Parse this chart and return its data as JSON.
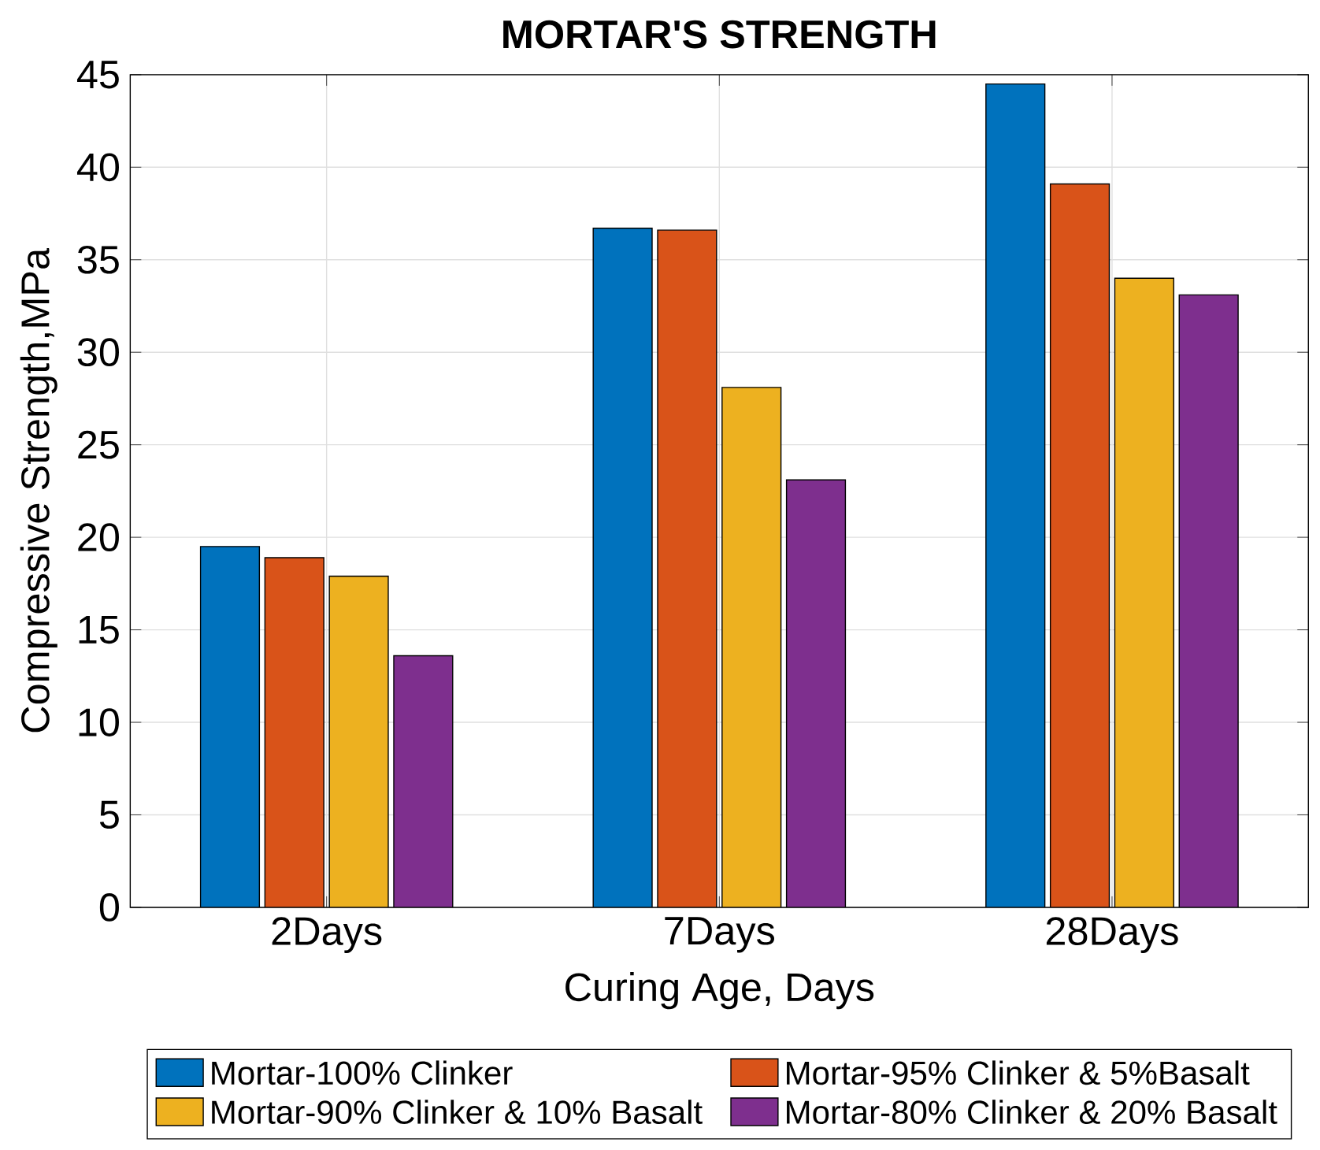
{
  "chart_data": {
    "type": "bar",
    "title": "MORTAR'S STRENGTH",
    "xlabel": "Curing Age, Days",
    "ylabel": "Compressive Strength,MPa",
    "categories": [
      "2Days",
      "7Days",
      "28Days"
    ],
    "series": [
      {
        "name": "Mortar-100% Clinker",
        "color": "#0072bd",
        "values": [
          19.5,
          36.7,
          44.5
        ]
      },
      {
        "name": "Mortar-95% Clinker & 5%Basalt",
        "color": "#d95319",
        "values": [
          18.9,
          36.6,
          39.1
        ]
      },
      {
        "name": "Mortar-90% Clinker & 10% Basalt",
        "color": "#edb120",
        "values": [
          17.9,
          28.1,
          34.0
        ]
      },
      {
        "name": "Mortar-80% Clinker & 20% Basalt",
        "color": "#7e2f8e",
        "values": [
          13.6,
          23.1,
          33.1
        ]
      }
    ],
    "ylim": [
      0,
      45
    ],
    "yticks": [
      0,
      5,
      10,
      15,
      20,
      25,
      30,
      35,
      40,
      45
    ],
    "grid": true,
    "legend": "bottom"
  }
}
